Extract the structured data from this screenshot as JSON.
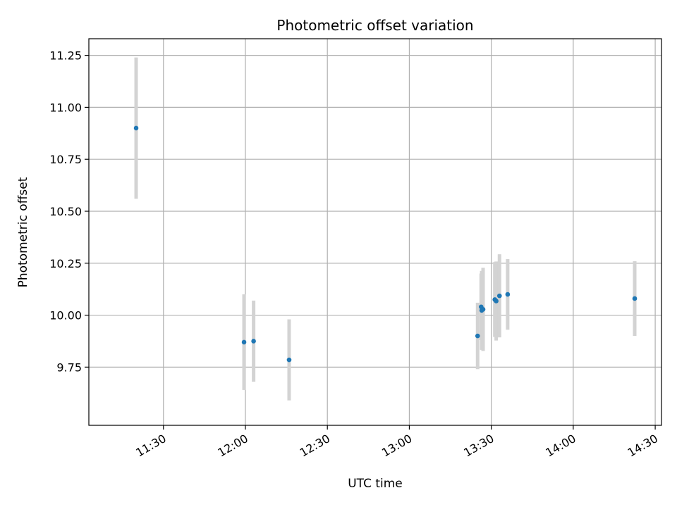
{
  "chart_data": {
    "type": "scatter",
    "title": "Photometric offset variation",
    "xlabel": "UTC time",
    "ylabel": "Photometric offset",
    "x_ticks": [
      "11:30",
      "12:00",
      "12:30",
      "13:00",
      "13:30",
      "14:00",
      "14:30"
    ],
    "x_tick_minutes": [
      690,
      720,
      750,
      780,
      810,
      840,
      870
    ],
    "y_ticks": [
      "9.75",
      "10.00",
      "10.25",
      "10.50",
      "10.75",
      "11.00",
      "11.25"
    ],
    "y_tick_values": [
      9.75,
      10.0,
      10.25,
      10.5,
      10.75,
      11.0,
      11.25
    ],
    "xlim_minutes": [
      662.7,
      872.3
    ],
    "ylim": [
      9.47,
      11.33
    ],
    "grid": true,
    "marker_color": "#1f77b4",
    "errorbar_color": "#d3d3d3",
    "points": [
      {
        "time": "11:20",
        "t": 680.0,
        "y": 10.9,
        "err": 0.34
      },
      {
        "time": "11:59",
        "t": 719.5,
        "y": 9.87,
        "err": 0.23
      },
      {
        "time": "12:03",
        "t": 723.0,
        "y": 9.875,
        "err": 0.195
      },
      {
        "time": "12:16",
        "t": 736.0,
        "y": 9.785,
        "err": 0.195
      },
      {
        "time": "13:25",
        "t": 805.0,
        "y": 9.9,
        "err": 0.16
      },
      {
        "time": "13:26",
        "t": 806.3,
        "y": 10.04,
        "err": 0.16
      },
      {
        "time": "13:26",
        "t": 806.5,
        "y": 10.023,
        "err": 0.19
      },
      {
        "time": "13:27",
        "t": 807.0,
        "y": 10.028,
        "err": 0.2
      },
      {
        "time": "13:31",
        "t": 811.3,
        "y": 10.075,
        "err": 0.18
      },
      {
        "time": "13:31",
        "t": 811.8,
        "y": 10.068,
        "err": 0.19
      },
      {
        "time": "13:33",
        "t": 813.0,
        "y": 10.093,
        "err": 0.2
      },
      {
        "time": "13:36",
        "t": 816.0,
        "y": 10.1,
        "err": 0.17
      },
      {
        "time": "14:23",
        "t": 862.5,
        "y": 10.08,
        "err": 0.18
      }
    ]
  }
}
